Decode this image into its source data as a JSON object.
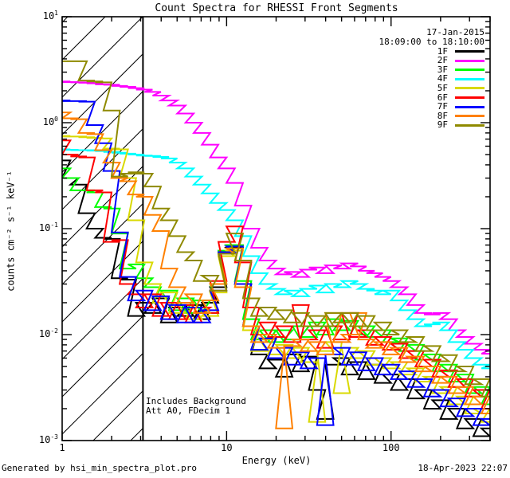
{
  "title": "Count Spectra for RHESSI Front Segments",
  "header": {
    "date": "17-Jan-2015",
    "time_range": "18:09:00 to 18:10:00"
  },
  "axes": {
    "xlabel": "Energy (keV)",
    "ylabel": "counts cm⁻² s⁻¹ keV⁻¹",
    "x_tick_labels": [
      "1",
      "10",
      "100"
    ],
    "x_tick_values": [
      1,
      10,
      100
    ],
    "y_tick_exponents": [
      1,
      0,
      -1,
      -2,
      -3
    ]
  },
  "annotations": {
    "line1": "Includes Background",
    "line2": "Att A0, FDecim 1"
  },
  "footer": {
    "left": "Generated by hsi_min_spectra_plot.pro",
    "right": "18-Apr-2023 22:07"
  },
  "colors": {
    "frame": "#000000",
    "background": "#ffffff"
  },
  "chart_data": {
    "type": "line",
    "style": "histogram-step",
    "x_scale": "log",
    "y_scale": "log",
    "xlim": [
      1,
      400
    ],
    "ylim": [
      0.001,
      10
    ],
    "grid": false,
    "legend_position": "top-right-inside",
    "hatch_region": {
      "xmin": 1,
      "xmax": 3.1,
      "style": "diagonal-hatch",
      "meaning": "excluded low-energy range"
    },
    "x": [
      1.0,
      1.12,
      1.26,
      1.41,
      1.58,
      1.78,
      2.0,
      2.24,
      2.51,
      2.82,
      3.16,
      3.55,
      3.98,
      4.47,
      5.01,
      5.62,
      6.31,
      7.08,
      7.94,
      8.91,
      10.0,
      11.2,
      12.6,
      14.1,
      15.8,
      17.8,
      20.0,
      22.4,
      25.1,
      28.2,
      31.6,
      35.5,
      39.8,
      44.7,
      50.1,
      56.2,
      63.1,
      70.8,
      79.4,
      89.1,
      100.0,
      112.0,
      126.0,
      141.0,
      158.0,
      178.0,
      200.0,
      224.0,
      251.0,
      282.0,
      316.0,
      355.0,
      398.0
    ],
    "series": [
      {
        "name": "1F",
        "color": "#000000",
        "values": [
          0.44,
          0.3,
          0.26,
          0.14,
          0.1,
          0.082,
          0.08,
          0.034,
          0.033,
          0.015,
          0.02,
          0.016,
          0.022,
          0.013,
          0.018,
          0.015,
          0.019,
          0.014,
          0.02,
          0.028,
          0.058,
          0.066,
          0.03,
          0.012,
          0.0065,
          0.0048,
          0.0058,
          0.004,
          0.0065,
          0.0045,
          0.0062,
          0.003,
          0.0016,
          0.0052,
          0.006,
          0.0042,
          0.0055,
          0.0038,
          0.0052,
          0.0035,
          0.0042,
          0.003,
          0.0038,
          0.0025,
          0.003,
          0.002,
          0.0024,
          0.0016,
          0.002,
          0.0013,
          0.0016,
          0.0011,
          0.0013
        ]
      },
      {
        "name": "2F",
        "color": "#ff00ff",
        "values": [
          2.45,
          2.42,
          2.4,
          2.38,
          2.35,
          2.3,
          2.28,
          2.22,
          2.18,
          2.12,
          2.05,
          1.95,
          1.8,
          1.62,
          1.45,
          1.22,
          1.0,
          0.8,
          0.62,
          0.47,
          0.37,
          0.27,
          0.165,
          0.1,
          0.066,
          0.05,
          0.042,
          0.037,
          0.039,
          0.035,
          0.041,
          0.043,
          0.038,
          0.045,
          0.042,
          0.047,
          0.044,
          0.04,
          0.038,
          0.035,
          0.032,
          0.028,
          0.024,
          0.019,
          0.016,
          0.0155,
          0.016,
          0.014,
          0.011,
          0.0095,
          0.0082,
          0.0072,
          0.0066
        ]
      },
      {
        "name": "3F",
        "color": "#00ff00",
        "values": [
          0.37,
          0.3,
          0.23,
          0.23,
          0.22,
          0.16,
          0.155,
          0.09,
          0.042,
          0.046,
          0.034,
          0.028,
          0.02,
          0.026,
          0.017,
          0.022,
          0.016,
          0.021,
          0.016,
          0.03,
          0.062,
          0.07,
          0.032,
          0.014,
          0.009,
          0.011,
          0.0085,
          0.011,
          0.009,
          0.012,
          0.0095,
          0.013,
          0.01,
          0.014,
          0.011,
          0.0135,
          0.01,
          0.012,
          0.0095,
          0.011,
          0.0085,
          0.0092,
          0.007,
          0.008,
          0.0058,
          0.0065,
          0.0045,
          0.0052,
          0.0036,
          0.0042,
          0.0028,
          0.0032,
          0.0022
        ]
      },
      {
        "name": "4F",
        "color": "#00ffff",
        "values": [
          0.56,
          0.555,
          0.55,
          0.55,
          0.545,
          0.54,
          0.53,
          0.52,
          0.51,
          0.5,
          0.49,
          0.485,
          0.475,
          0.46,
          0.42,
          0.37,
          0.31,
          0.26,
          0.215,
          0.175,
          0.15,
          0.12,
          0.085,
          0.055,
          0.038,
          0.03,
          0.027,
          0.024,
          0.026,
          0.023,
          0.027,
          0.029,
          0.025,
          0.03,
          0.028,
          0.032,
          0.03,
          0.027,
          0.026,
          0.024,
          0.026,
          0.021,
          0.017,
          0.014,
          0.012,
          0.0125,
          0.013,
          0.011,
          0.0085,
          0.0072,
          0.006,
          0.0052,
          0.0048
        ]
      },
      {
        "name": "5F",
        "color": "#d9d900",
        "values": [
          0.75,
          0.74,
          0.74,
          0.73,
          0.72,
          0.71,
          0.57,
          0.56,
          0.3,
          0.12,
          0.048,
          0.03,
          0.02,
          0.025,
          0.016,
          0.02,
          0.014,
          0.018,
          0.015,
          0.025,
          0.055,
          0.062,
          0.028,
          0.011,
          0.007,
          0.009,
          0.0065,
          0.008,
          0.006,
          0.0075,
          0.0055,
          0.0015,
          0.007,
          0.0085,
          0.0028,
          0.0075,
          0.006,
          0.007,
          0.0052,
          0.006,
          0.0048,
          0.0055,
          0.0042,
          0.0048,
          0.0036,
          0.004,
          0.0028,
          0.0032,
          0.0022,
          0.0026,
          0.0018,
          0.002,
          0.0015
        ]
      },
      {
        "name": "6F",
        "color": "#ff0000",
        "values": [
          0.68,
          0.5,
          0.48,
          0.47,
          0.23,
          0.22,
          0.075,
          0.078,
          0.03,
          0.024,
          0.018,
          0.024,
          0.015,
          0.02,
          0.014,
          0.019,
          0.013,
          0.018,
          0.016,
          0.032,
          0.075,
          0.105,
          0.048,
          0.018,
          0.01,
          0.013,
          0.0095,
          0.012,
          0.0085,
          0.019,
          0.009,
          0.011,
          0.0075,
          0.012,
          0.009,
          0.016,
          0.0095,
          0.011,
          0.008,
          0.0095,
          0.0072,
          0.0082,
          0.006,
          0.007,
          0.005,
          0.0058,
          0.004,
          0.0046,
          0.0032,
          0.0038,
          0.0026,
          0.003,
          0.002
        ]
      },
      {
        "name": "7F",
        "color": "#0000ff",
        "values": [
          1.62,
          1.6,
          1.6,
          1.58,
          0.95,
          0.64,
          0.35,
          0.092,
          0.035,
          0.021,
          0.026,
          0.017,
          0.023,
          0.014,
          0.019,
          0.013,
          0.018,
          0.013,
          0.017,
          0.026,
          0.06,
          0.068,
          0.03,
          0.012,
          0.0072,
          0.0092,
          0.006,
          0.0075,
          0.0052,
          0.0068,
          0.0048,
          0.006,
          0.0014,
          0.0065,
          0.0075,
          0.0052,
          0.0068,
          0.0046,
          0.006,
          0.0042,
          0.0052,
          0.0038,
          0.0045,
          0.0032,
          0.0038,
          0.0026,
          0.003,
          0.0021,
          0.0025,
          0.0017,
          0.002,
          0.0014,
          0.0016
        ]
      },
      {
        "name": "8F",
        "color": "#ff8000",
        "values": [
          1.25,
          1.1,
          1.08,
          0.8,
          0.78,
          0.55,
          0.42,
          0.3,
          0.28,
          0.21,
          0.2,
          0.135,
          0.095,
          0.042,
          0.028,
          0.02,
          0.024,
          0.016,
          0.021,
          0.03,
          0.058,
          0.065,
          0.028,
          0.012,
          0.0085,
          0.01,
          0.0075,
          0.0013,
          0.0078,
          0.009,
          0.007,
          0.0085,
          0.0065,
          0.016,
          0.0085,
          0.01,
          0.016,
          0.009,
          0.0075,
          0.0085,
          0.0065,
          0.0075,
          0.0055,
          0.0062,
          0.0045,
          0.005,
          0.0035,
          0.004,
          0.0028,
          0.0032,
          0.0022,
          0.0026,
          0.0018
        ]
      },
      {
        "name": "9F",
        "color": "#8f8a00",
        "values": [
          3.8,
          3.8,
          3.8,
          2.5,
          2.45,
          2.4,
          1.3,
          0.31,
          0.33,
          0.34,
          0.33,
          0.25,
          0.155,
          0.12,
          0.085,
          0.06,
          0.05,
          0.032,
          0.036,
          0.026,
          0.058,
          0.09,
          0.05,
          0.022,
          0.015,
          0.018,
          0.014,
          0.017,
          0.013,
          0.016,
          0.012,
          0.015,
          0.012,
          0.016,
          0.013,
          0.016,
          0.012,
          0.015,
          0.011,
          0.013,
          0.01,
          0.011,
          0.0085,
          0.0095,
          0.007,
          0.0078,
          0.0056,
          0.0064,
          0.0045,
          0.005,
          0.0034,
          0.0038,
          0.0026
        ]
      }
    ]
  }
}
